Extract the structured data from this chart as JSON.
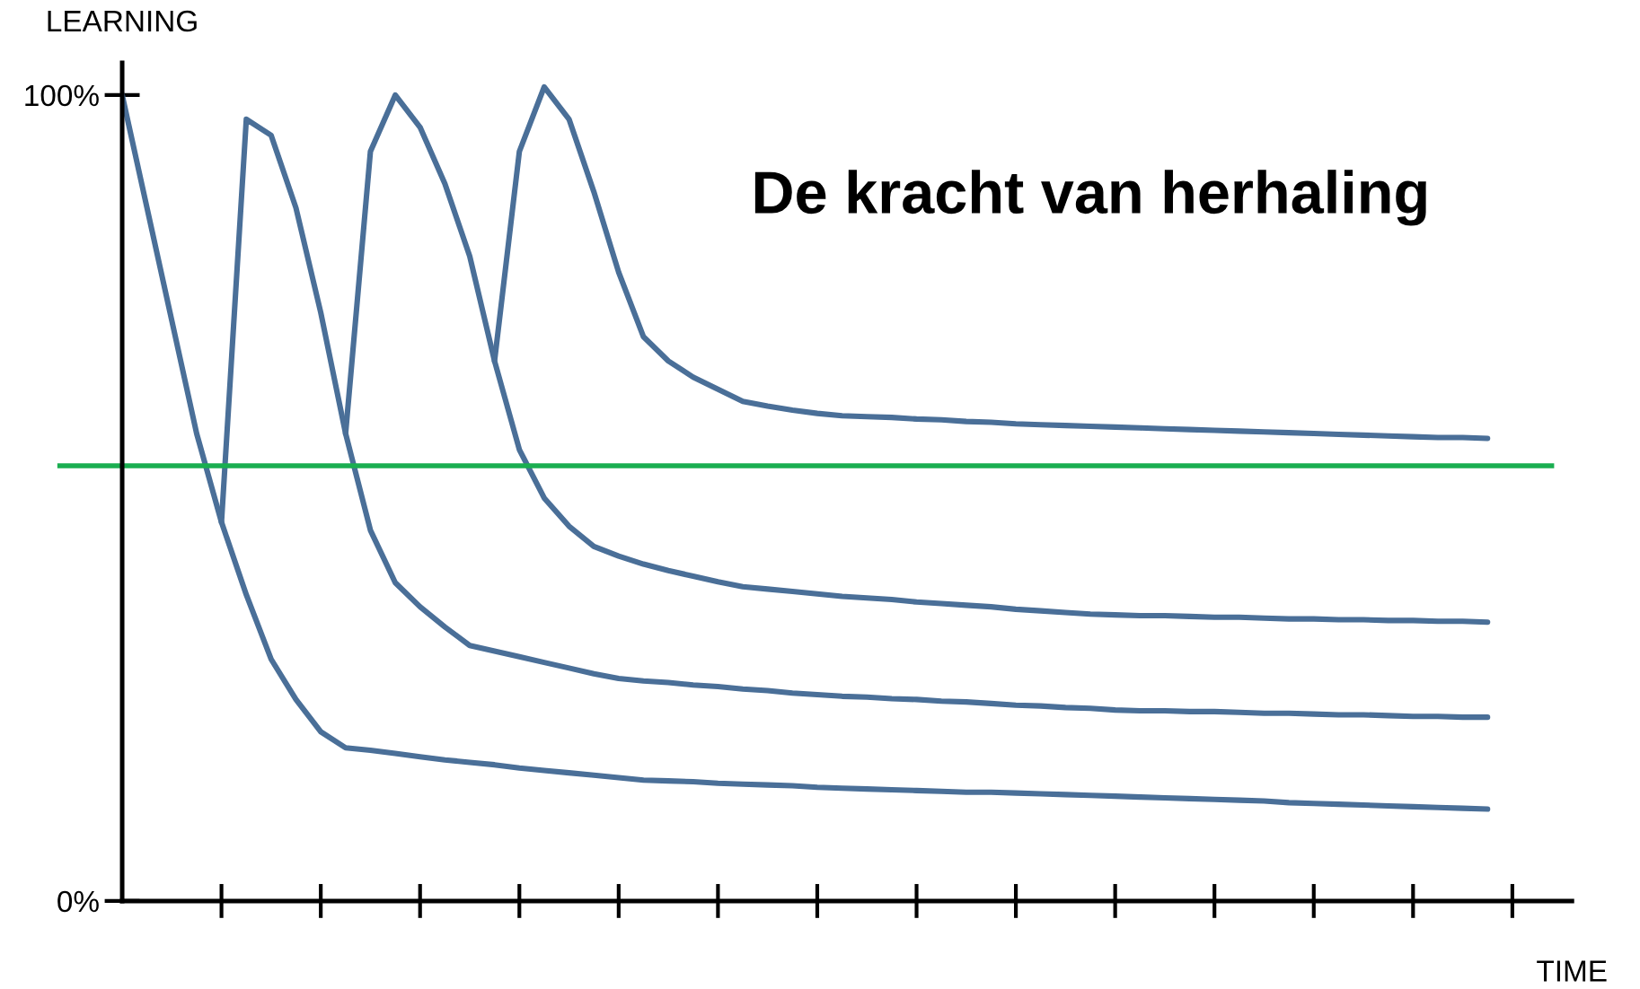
{
  "chart_data": {
    "type": "line",
    "title": "De kracht van herhaling",
    "xlabel": "TIME",
    "ylabel": "LEARNING",
    "categories": [
      null,
      null,
      null,
      null,
      null,
      null,
      null,
      null,
      null,
      null,
      null,
      null,
      null,
      null,
      null,
      null,
      null,
      null,
      null,
      null,
      null,
      null,
      null,
      null,
      null,
      null,
      null,
      null,
      null,
      null,
      null,
      null,
      null,
      null,
      null,
      null,
      null,
      null,
      null,
      null,
      null,
      null,
      null,
      null,
      null,
      null,
      null,
      null,
      null,
      null,
      null,
      null,
      null,
      null,
      null,
      null
    ],
    "series": [
      {
        "color": "#4a6f98",
        "values": [
          100,
          86,
          72,
          58,
          47,
          38,
          30,
          25,
          21,
          19,
          18.7,
          18.3,
          17.9,
          17.5,
          17.2,
          16.9,
          16.5,
          16.2,
          15.9,
          15.6,
          15.3,
          15.0,
          14.9,
          14.8,
          14.6,
          14.5,
          14.4,
          14.3,
          14.1,
          14.0,
          13.9,
          13.8,
          13.7,
          13.6,
          13.5,
          13.5,
          13.4,
          13.3,
          13.2,
          13.1,
          13.0,
          12.9,
          12.8,
          12.7,
          12.6,
          12.5,
          12.4,
          12.2,
          12.1,
          12.0,
          11.9,
          11.8,
          11.7,
          11.6,
          11.5,
          11.4
        ]
      },
      {
        "color": "#4a6f98",
        "values": [
          null,
          null,
          null,
          null,
          47,
          97,
          95,
          86,
          73,
          58,
          46,
          39.5,
          36.5,
          34,
          31.7,
          31,
          30.3,
          29.6,
          28.9,
          28.2,
          27.6,
          27.3,
          27.1,
          26.8,
          26.6,
          26.3,
          26.1,
          25.8,
          25.6,
          25.4,
          25.3,
          25.1,
          25.0,
          24.8,
          24.7,
          24.5,
          24.3,
          24.2,
          24.0,
          23.9,
          23.7,
          23.6,
          23.6,
          23.5,
          23.5,
          23.4,
          23.3,
          23.3,
          23.2,
          23.1,
          23.1,
          23.0,
          22.9,
          22.9,
          22.8,
          22.8
        ]
      },
      {
        "color": "#4a6f98",
        "values": [
          null,
          null,
          null,
          null,
          null,
          null,
          null,
          null,
          null,
          58,
          93,
          100,
          96,
          89,
          80,
          67,
          56,
          50,
          46.5,
          44,
          42.8,
          41.8,
          41,
          40.3,
          39.6,
          39,
          38.7,
          38.4,
          38.1,
          37.8,
          37.6,
          37.4,
          37.1,
          36.9,
          36.7,
          36.5,
          36.2,
          36.0,
          35.8,
          35.6,
          35.5,
          35.4,
          35.4,
          35.3,
          35.2,
          35.2,
          35.1,
          35.0,
          35.0,
          34.9,
          34.9,
          34.8,
          34.8,
          34.7,
          34.7,
          34.6
        ]
      },
      {
        "color": "#4a6f98",
        "values": [
          null,
          null,
          null,
          null,
          null,
          null,
          null,
          null,
          null,
          null,
          null,
          null,
          null,
          null,
          null,
          67,
          93,
          101,
          97,
          88,
          78,
          70,
          67,
          65,
          63.5,
          62,
          61.4,
          60.9,
          60.5,
          60.2,
          60.1,
          60.0,
          59.8,
          59.7,
          59.5,
          59.4,
          59.2,
          59.1,
          59.0,
          58.9,
          58.8,
          58.7,
          58.6,
          58.5,
          58.4,
          58.3,
          58.2,
          58.1,
          58.0,
          57.9,
          57.8,
          57.7,
          57.6,
          57.5,
          57.5,
          57.4
        ]
      }
    ],
    "ref_lines": [
      {
        "axis": "y",
        "value": 54,
        "color": "#1aae50"
      }
    ],
    "ylim": [
      0,
      104
    ],
    "yticks": [
      {
        "value": 0,
        "label": "0%"
      },
      {
        "value": 100,
        "label": "100%"
      }
    ],
    "grid": false,
    "legend": false,
    "marker": "none",
    "line_style": "solid"
  }
}
